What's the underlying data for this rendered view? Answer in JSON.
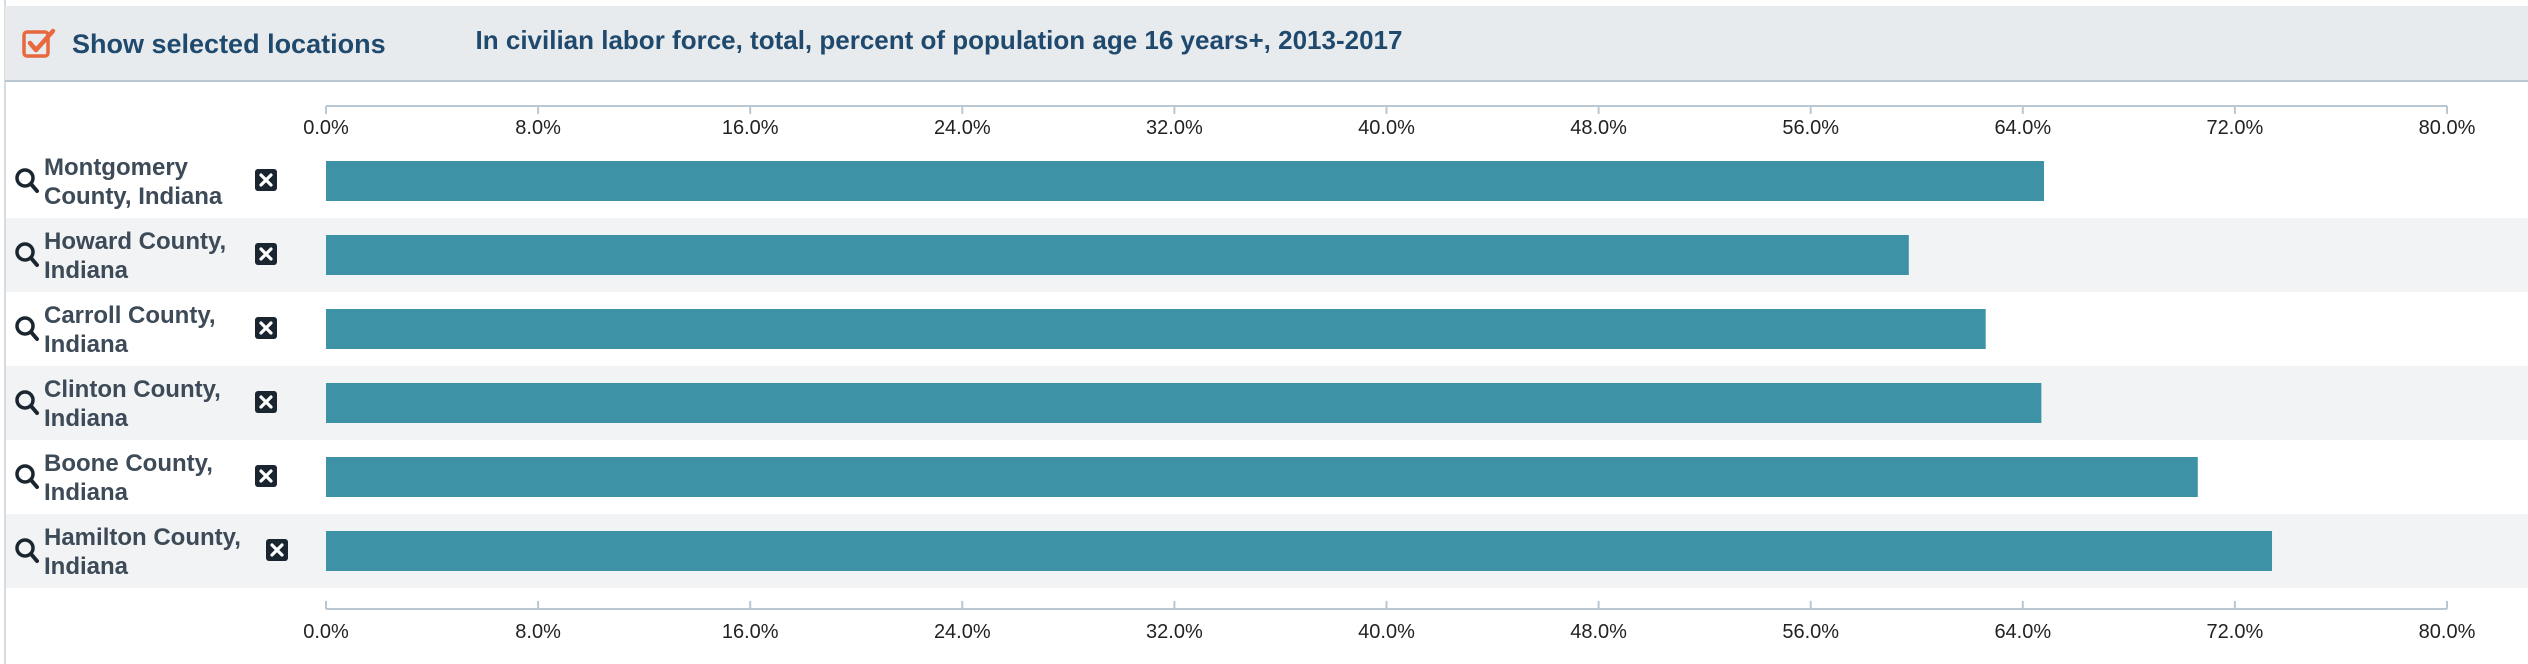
{
  "header": {
    "toggle_label": "Show selected locations",
    "toggle_checked": true,
    "toggle_icon": "checkbox-checked-icon"
  },
  "icons": {
    "row_search": "search-icon",
    "row_remove": "close-box-icon"
  },
  "colors": {
    "bar": "#3d92a5",
    "accent": "#e8683f",
    "title": "#1f4a6e",
    "row_alt": "#f1f3f5"
  },
  "chart_data": {
    "type": "bar",
    "orientation": "horizontal",
    "title": "In civilian labor force, total, percent of population age 16 years+, 2013-2017",
    "categories": [
      [
        "Montgomery",
        "County, Indiana"
      ],
      [
        "Howard County,",
        "Indiana"
      ],
      [
        "Carroll County,",
        "Indiana"
      ],
      [
        "Clinton County,",
        "Indiana"
      ],
      [
        "Boone County,",
        "Indiana"
      ],
      [
        "Hamilton County,",
        "Indiana"
      ]
    ],
    "values": [
      64.8,
      59.7,
      62.6,
      64.7,
      70.6,
      73.4
    ],
    "xlim": [
      0,
      80
    ],
    "ticks": [
      "0.0%",
      "8.0%",
      "16.0%",
      "24.0%",
      "32.0%",
      "40.0%",
      "48.0%",
      "56.0%",
      "64.0%",
      "72.0%",
      "80.0%"
    ],
    "tick_values": [
      0,
      8,
      16,
      24,
      32,
      40,
      48,
      56,
      64,
      72,
      80
    ],
    "axis_position": "top-and-bottom",
    "grid": false,
    "legend": "none"
  }
}
